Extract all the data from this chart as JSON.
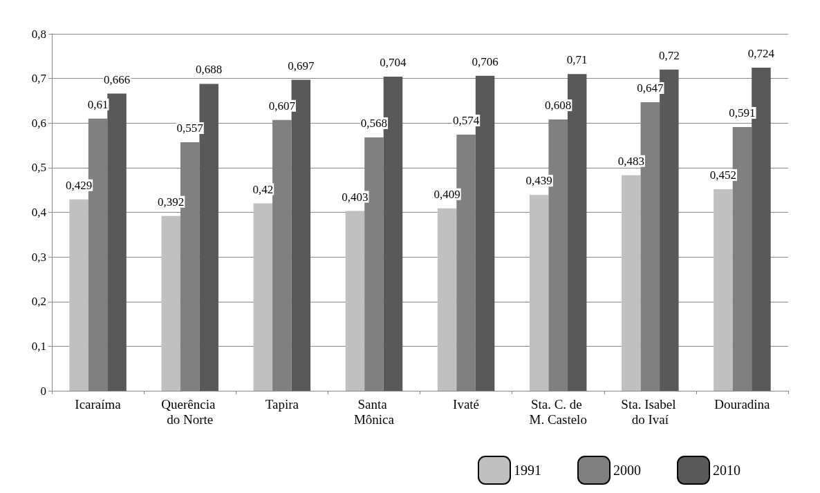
{
  "chart_data": {
    "type": "bar",
    "categories": [
      "Icaraíma",
      "Querência do Norte",
      "Tapira",
      "Santa Mônica",
      "Ivaté",
      "Sta. C. de M. Castelo",
      "Sta. Isabel do Ivaí",
      "Douradina"
    ],
    "series": [
      {
        "name": "1991",
        "color": "#c0c0c0",
        "values": [
          0.429,
          0.392,
          0.42,
          0.403,
          0.409,
          0.439,
          0.483,
          0.452
        ],
        "value_labels": [
          "0,429",
          "0,392",
          "0,42",
          "0,403",
          "0,409",
          "0,439",
          "0,483",
          "0,452"
        ]
      },
      {
        "name": "2000",
        "color": "#808080",
        "values": [
          0.61,
          0.557,
          0.607,
          0.568,
          0.574,
          0.608,
          0.647,
          0.591
        ],
        "value_labels": [
          "0,61",
          "0,557",
          "0,607",
          "0,568",
          "0,574",
          "0,608",
          "0,647",
          "0,591"
        ]
      },
      {
        "name": "2010",
        "color": "#595959",
        "values": [
          0.666,
          0.688,
          0.697,
          0.704,
          0.706,
          0.71,
          0.72,
          0.724
        ],
        "value_labels": [
          "0,666",
          "0,688",
          "0,697",
          "0,704",
          "0,706",
          "0,71",
          "0,72",
          "0,724"
        ]
      }
    ],
    "ylim": [
      0,
      0.8
    ],
    "yticks": [
      0,
      {
        "value": 0.1,
        "label": "0,1"
      },
      {
        "value": 0.2,
        "label": "0,2"
      },
      {
        "value": 0.3,
        "label": "0,3"
      },
      {
        "value": 0.4,
        "label": "0,4"
      },
      {
        "value": 0.5,
        "label": "0,5"
      },
      {
        "value": 0.6,
        "label": "0,6"
      },
      {
        "value": 0.7,
        "label": "0,7"
      },
      {
        "value": 0.8,
        "label": "0,8"
      }
    ],
    "grid": "y",
    "legend": "bottom right"
  }
}
